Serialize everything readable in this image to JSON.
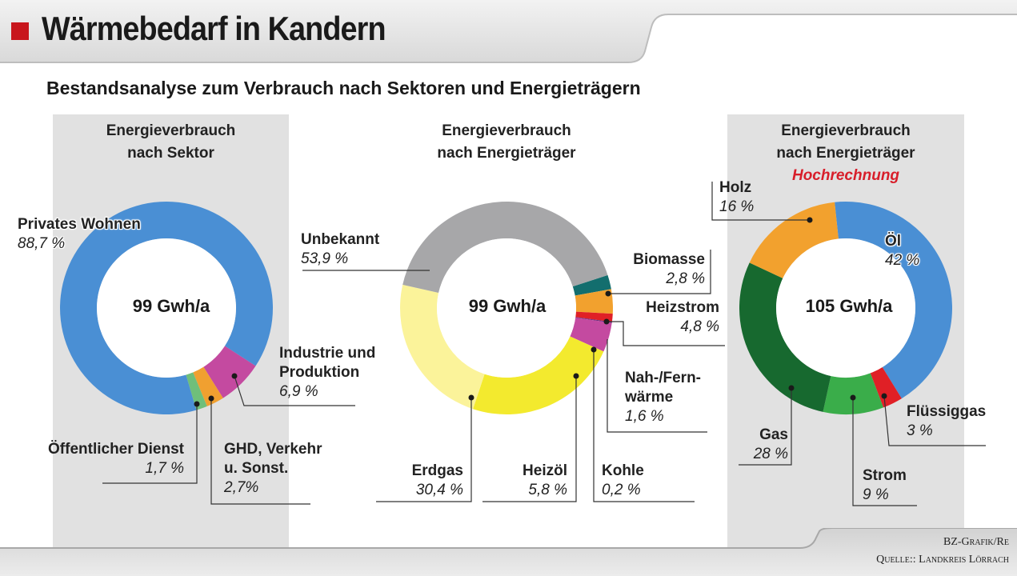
{
  "header": {
    "title": "Wärmebedarf in Kandern",
    "subtitle": "Bestandsanalyse zum Verbrauch nach Sektoren und Energieträgern"
  },
  "colors": {
    "accent_red": "#c8161d",
    "panel_gray": "#e1e1e1",
    "hochrechnung_red": "#d81e2a"
  },
  "footer": {
    "credit_line1": "BZ-Grafik/Re",
    "credit_line2": "Quelle:: Landkreis Lörrach"
  },
  "chart_data": [
    {
      "type": "pie",
      "variant": "donut",
      "title_line1": "Energieverbrauch",
      "title_line2": "nach Sektor",
      "center_label": "99 Gwh/a",
      "series": [
        {
          "name": "Privates Wohnen",
          "value": 88.7,
          "value_label": "88,7 %",
          "color": "#4a8fd4"
        },
        {
          "name": "Öffentlicher Dienst",
          "value": 1.7,
          "value_label": "1,7 %",
          "color": "#6fbf7a"
        },
        {
          "name_line1": "GHD, Verkehr",
          "name_line2": "u. Sonst.",
          "value": 2.7,
          "value_label": "2,7%",
          "color": "#f0a030"
        },
        {
          "name_line1": "Industrie und",
          "name_line2": "Produktion",
          "value": 6.9,
          "value_label": "6,9 %",
          "color": "#c44aa0"
        }
      ]
    },
    {
      "type": "pie",
      "variant": "donut",
      "title_line1": "Energieverbrauch",
      "title_line2": "nach Energieträger",
      "center_label": "99 Gwh/a",
      "series": [
        {
          "name": "Unbekannt",
          "value": 53.9,
          "value_label": "53,9 %",
          "color": "#a7a7a9"
        },
        {
          "name": "Biomasse",
          "value": 2.8,
          "value_label": "2,8 %",
          "color": "#136e6e"
        },
        {
          "name": "Heizstrom",
          "value": 4.8,
          "value_label": "4,8 %",
          "color": "#f2a12e"
        },
        {
          "name_line1": "Nah-/Fern-",
          "name_line2": "wärme",
          "value": 1.6,
          "value_label": "1,6 %",
          "color": "#e02026"
        },
        {
          "name": "Kohle",
          "value": 0.2,
          "value_label": "0,2 %",
          "color": "#6a2a80"
        },
        {
          "name": "Heizöl",
          "value": 5.8,
          "value_label": "5,8 %",
          "color": "#c44aa0"
        },
        {
          "name": "Erdgas",
          "value": 30.4,
          "value_label": "30,4 %",
          "color": "#f3ea2e"
        }
      ],
      "extra_segment": {
        "value": 30.4,
        "color": "#fbf39a"
      }
    },
    {
      "type": "pie",
      "variant": "donut",
      "title_line1": "Energieverbrauch",
      "title_line2": "nach Energieträger",
      "title_line3": "Hochrechnung",
      "center_label": "105 Gwh/a",
      "series": [
        {
          "name": "Öl",
          "value": 42,
          "value_label": "42 %",
          "color": "#4a8fd4"
        },
        {
          "name": "Flüssiggas",
          "value": 3,
          "value_label": "3 %",
          "color": "#e02026"
        },
        {
          "name": "Strom",
          "value": 9,
          "value_label": "9 %",
          "color": "#3aad4a"
        },
        {
          "name": "Gas",
          "value": 28,
          "value_label": "28 %",
          "color": "#17692f"
        },
        {
          "name": "Holz",
          "value": 16,
          "value_label": "16 %",
          "color": "#f2a12e"
        }
      ]
    }
  ]
}
